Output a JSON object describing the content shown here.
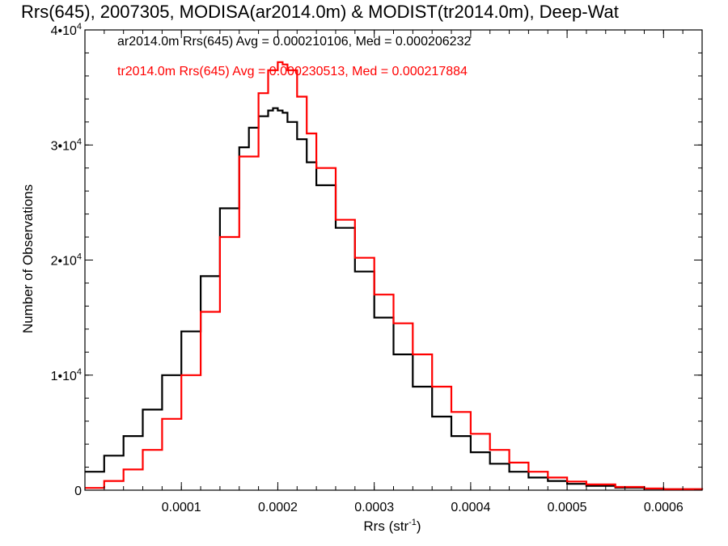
{
  "chart_data": {
    "type": "line",
    "title": "Rrs(645), 2007305, MODISA(ar2014.0m) & MODIST(tr2014.0m), Deep-Wat",
    "xlabel": "Rrs (str",
    "xlabel_sup": "-1",
    "xlabel_close": ")",
    "ylabel": "Number of Observations",
    "xlim": [
      0.0,
      0.00064
    ],
    "ylim": [
      0,
      40000
    ],
    "x_ticks": [
      {
        "value": 0.0001,
        "label": "0.0001"
      },
      {
        "value": 0.0002,
        "label": "0.0002"
      },
      {
        "value": 0.0003,
        "label": "0.0003"
      },
      {
        "value": 0.0004,
        "label": "0.0004"
      },
      {
        "value": 0.0005,
        "label": "0.0005"
      },
      {
        "value": 0.0006,
        "label": "0.0006"
      }
    ],
    "y_ticks": [
      {
        "value": 0,
        "base": "0",
        "exp": ""
      },
      {
        "value": 10000,
        "base": "1•10",
        "exp": "4"
      },
      {
        "value": 20000,
        "base": "2•10",
        "exp": "4"
      },
      {
        "value": 30000,
        "base": "3•10",
        "exp": "4"
      },
      {
        "value": 40000,
        "base": "4•10",
        "exp": "4"
      }
    ],
    "series": [
      {
        "name": "ar2014.0m Rrs(645) Avg = 0.000210106, Med = 0.000206232",
        "color": "#000000",
        "x": [
          0.0,
          2e-05,
          4e-05,
          6e-05,
          8e-05,
          0.0001,
          0.00012,
          0.00014,
          0.00016,
          0.00017,
          0.00018,
          0.00019,
          0.000195,
          0.0002,
          0.000205,
          0.00021,
          0.00022,
          0.00023,
          0.00024,
          0.00026,
          0.00028,
          0.0003,
          0.00032,
          0.00034,
          0.00036,
          0.00038,
          0.0004,
          0.00042,
          0.00044,
          0.00046,
          0.00048,
          0.0005,
          0.00052,
          0.00055,
          0.00058,
          0.0006,
          0.00064
        ],
        "values": [
          1600,
          3000,
          4700,
          7000,
          10000,
          13800,
          18600,
          24500,
          29800,
          31500,
          32500,
          33000,
          33200,
          33000,
          32800,
          32000,
          30500,
          28500,
          26500,
          22800,
          19000,
          15000,
          11800,
          9000,
          6400,
          4700,
          3300,
          2300,
          1600,
          1100,
          800,
          550,
          380,
          220,
          130,
          80,
          40
        ]
      },
      {
        "name": "tr2014.0m Rrs(645) Avg = 0.000230513, Med = 0.000217884",
        "color": "#ff0000",
        "x": [
          0.0,
          2e-05,
          4e-05,
          6e-05,
          8e-05,
          0.0001,
          0.00012,
          0.00014,
          0.00016,
          0.00018,
          0.00019,
          0.0002,
          0.000205,
          0.00021,
          0.00022,
          0.00023,
          0.00024,
          0.00026,
          0.00028,
          0.0003,
          0.00032,
          0.00034,
          0.00036,
          0.00038,
          0.0004,
          0.00042,
          0.00044,
          0.00046,
          0.00048,
          0.0005,
          0.00052,
          0.00055,
          0.00058,
          0.0006,
          0.00064
        ],
        "values": [
          200,
          800,
          1800,
          3500,
          6200,
          10000,
          15500,
          22000,
          29000,
          34500,
          36500,
          37200,
          37000,
          36500,
          34200,
          31000,
          28000,
          23500,
          20200,
          17000,
          14500,
          11800,
          9000,
          6800,
          4900,
          3500,
          2400,
          1600,
          1100,
          750,
          500,
          280,
          150,
          90,
          40
        ]
      }
    ],
    "grid": false,
    "legend_position": "top-left"
  }
}
